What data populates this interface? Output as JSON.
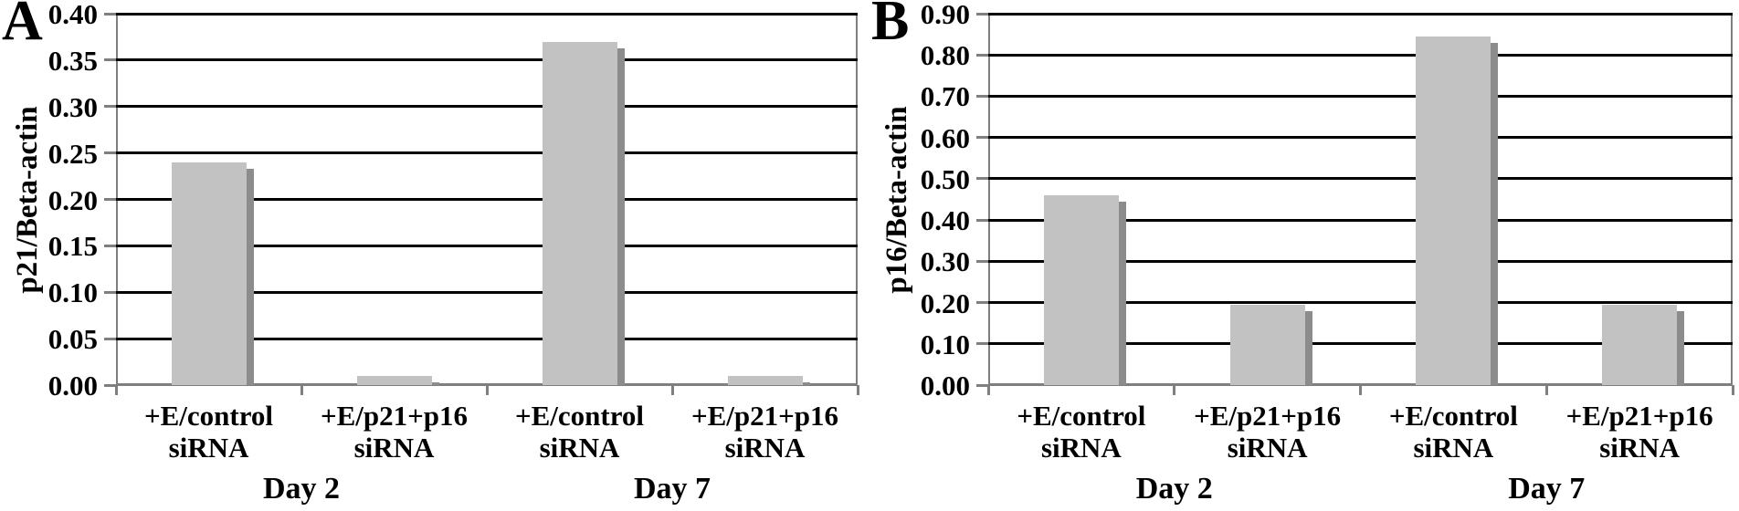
{
  "figure": {
    "background": "#ffffff",
    "panel_letters": [
      "A",
      "B"
    ]
  },
  "chart_data": [
    {
      "type": "bar",
      "panel_label": "A",
      "title": "",
      "xlabel": "",
      "ylabel": "p21/Beta-actin",
      "categories": [
        "+E/control siRNA",
        "+E/p21+p16 siRNA",
        "+E/control siRNA",
        "+E/p21+p16 siRNA"
      ],
      "group_labels": [
        "Day 2",
        "Day 7"
      ],
      "values": [
        0.24,
        0.01,
        0.37,
        0.01
      ],
      "ylim": [
        0,
        0.4
      ],
      "ytick_step": 0.05,
      "ytick_labels": [
        "0.40",
        "0.35",
        "0.30",
        "0.25",
        "0.20",
        "0.15",
        "0.10",
        "0.05",
        "0.00"
      ],
      "grid": true,
      "legend": "none",
      "bar_color": "#c2c2c2",
      "shadow_color": "#8c8c8c",
      "gridline_color": "#000000",
      "axis_color": "#7f7f7f"
    },
    {
      "type": "bar",
      "panel_label": "B",
      "title": "",
      "xlabel": "",
      "ylabel": "p16/Beta-actin",
      "categories": [
        "+E/control siRNA",
        "+E/p21+p16 siRNA",
        "+E/control siRNA",
        "+E/p21+p16 siRNA"
      ],
      "group_labels": [
        "Day 2",
        "Day 7"
      ],
      "values": [
        0.46,
        0.195,
        0.845,
        0.195
      ],
      "ylim": [
        0,
        0.9
      ],
      "ytick_step": 0.1,
      "ytick_labels": [
        "0.90",
        "0.80",
        "0.70",
        "0.60",
        "0.50",
        "0.40",
        "0.30",
        "0.20",
        "0.10",
        "0.00"
      ],
      "grid": true,
      "legend": "none",
      "bar_color": "#c2c2c2",
      "shadow_color": "#8c8c8c",
      "gridline_color": "#000000",
      "axis_color": "#7f7f7f"
    }
  ]
}
